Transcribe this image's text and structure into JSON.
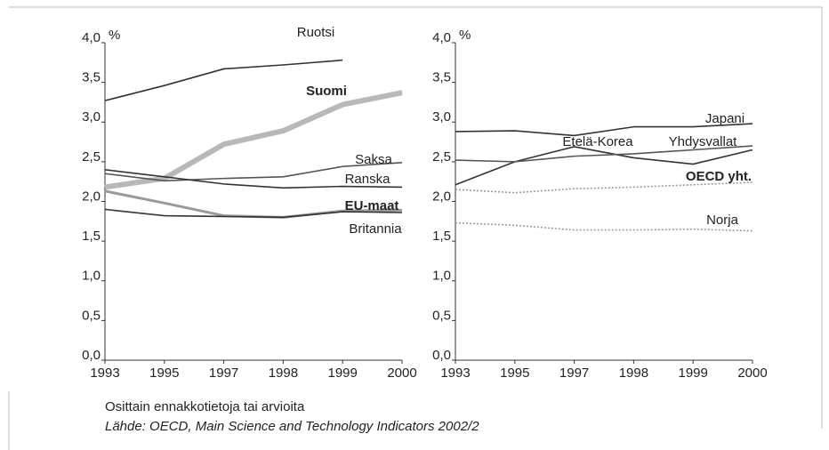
{
  "chart_data": [
    {
      "type": "line",
      "y_unit": "%",
      "categories": [
        "1993",
        "1995",
        "1997",
        "1998",
        "1999",
        "2000"
      ],
      "ylim": [
        0,
        4
      ],
      "yticks": [
        {
          "value": 0,
          "label": "0,0"
        },
        {
          "value": 0.5,
          "label": "0,5"
        },
        {
          "value": 1,
          "label": "1,0"
        },
        {
          "value": 1.5,
          "label": "1,5"
        },
        {
          "value": 2,
          "label": "2,0"
        },
        {
          "value": 2.5,
          "label": "2,5"
        },
        {
          "value": 3,
          "label": "3,0"
        },
        {
          "value": 3.5,
          "label": "3,5"
        },
        {
          "value": 4,
          "label": "4,0"
        }
      ],
      "series": [
        {
          "name": "Ruotsi",
          "color": "#333333",
          "line_style": "solid",
          "label_bold": false,
          "values": [
            3.27,
            3.46,
            3.67,
            3.72,
            3.78,
            null
          ]
        },
        {
          "name": "Suomi",
          "color": "#b8b8b8",
          "line_style": "thick",
          "label_bold": true,
          "values": [
            2.18,
            2.29,
            2.72,
            2.89,
            3.22,
            3.37
          ]
        },
        {
          "name": "Saksa",
          "color": "#555555",
          "line_style": "solid",
          "label_bold": false,
          "values": [
            2.35,
            2.26,
            2.29,
            2.31,
            2.44,
            2.49
          ]
        },
        {
          "name": "Ranska",
          "color": "#333333",
          "line_style": "solid",
          "label_bold": false,
          "values": [
            2.4,
            2.31,
            2.22,
            2.17,
            2.19,
            2.18
          ]
        },
        {
          "name": "EU-maat",
          "color": "#9a9a9a",
          "line_style": "medium",
          "label_bold": true,
          "values": [
            2.13,
            1.98,
            1.82,
            1.8,
            1.88,
            1.89
          ]
        },
        {
          "name": "Britannia",
          "color": "#333333",
          "line_style": "solid",
          "label_bold": false,
          "values": [
            1.9,
            1.82,
            1.81,
            1.8,
            1.87,
            1.86
          ]
        }
      ]
    },
    {
      "type": "line",
      "y_unit": "%",
      "categories": [
        "1993",
        "1995",
        "1997",
        "1998",
        "1999",
        "2000"
      ],
      "ylim": [
        0,
        4
      ],
      "yticks": [
        {
          "value": 0,
          "label": "0,0"
        },
        {
          "value": 0.5,
          "label": "0,5"
        },
        {
          "value": 1,
          "label": "1,0"
        },
        {
          "value": 1.5,
          "label": "1,5"
        },
        {
          "value": 2,
          "label": "2,0"
        },
        {
          "value": 2.5,
          "label": "2,5"
        },
        {
          "value": 3,
          "label": "3,0"
        },
        {
          "value": 3.5,
          "label": "3,5"
        },
        {
          "value": 4,
          "label": "4,0"
        }
      ],
      "series": [
        {
          "name": "Japani",
          "color": "#333333",
          "line_style": "solid",
          "label_bold": false,
          "values": [
            2.88,
            2.89,
            2.83,
            2.94,
            2.94,
            2.98
          ]
        },
        {
          "name": "Etelä-Korea",
          "color": "#333333",
          "line_style": "solid",
          "label_bold": false,
          "values": [
            2.21,
            2.5,
            2.69,
            2.55,
            2.47,
            2.65
          ]
        },
        {
          "name": "Yhdysvallat",
          "color": "#555555",
          "line_style": "solid",
          "label_bold": false,
          "values": [
            2.52,
            2.5,
            2.57,
            2.6,
            2.65,
            2.7
          ]
        },
        {
          "name": "OECD yht.",
          "color": "#999999",
          "line_style": "dotted",
          "label_bold": true,
          "values": [
            2.15,
            2.11,
            2.16,
            2.18,
            2.21,
            2.24
          ]
        },
        {
          "name": "Norja",
          "color": "#999999",
          "line_style": "dotted",
          "label_bold": false,
          "values": [
            1.73,
            1.7,
            1.64,
            1.64,
            1.65,
            1.63
          ]
        }
      ]
    }
  ],
  "notes": [
    "Osittain ennakkotietoja tai arvioita",
    "Lähde: OECD, Main Science and Technology Indicators 2002/2"
  ]
}
